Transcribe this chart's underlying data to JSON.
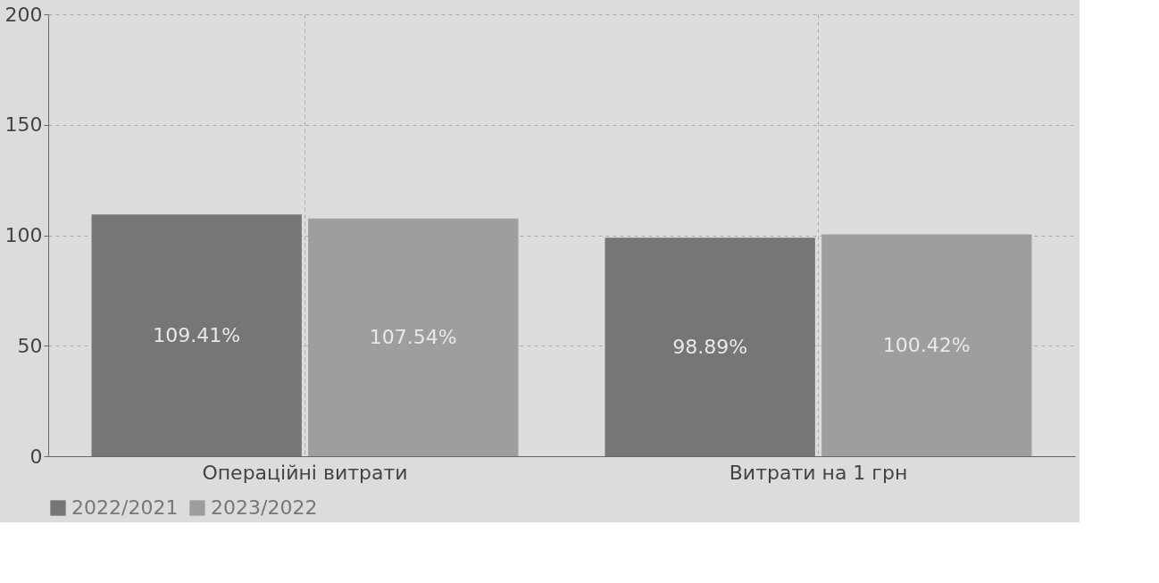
{
  "chart_data": {
    "type": "bar",
    "categories": [
      "Операційні витрати",
      "Витрати на 1 грн"
    ],
    "series": [
      {
        "name": "2022/2021",
        "color": "#767676",
        "values": [
          109.41,
          98.89
        ],
        "value_labels": [
          "109.41%",
          "98.89%"
        ]
      },
      {
        "name": "2023/2022",
        "color": "#9e9e9e",
        "values": [
          107.54,
          100.42
        ],
        "value_labels": [
          "107.54%",
          "100.42%"
        ]
      }
    ],
    "ylim": [
      0,
      200
    ],
    "yticks": [
      0,
      50,
      100,
      150,
      200
    ],
    "grid": true,
    "legend": "bottom"
  }
}
